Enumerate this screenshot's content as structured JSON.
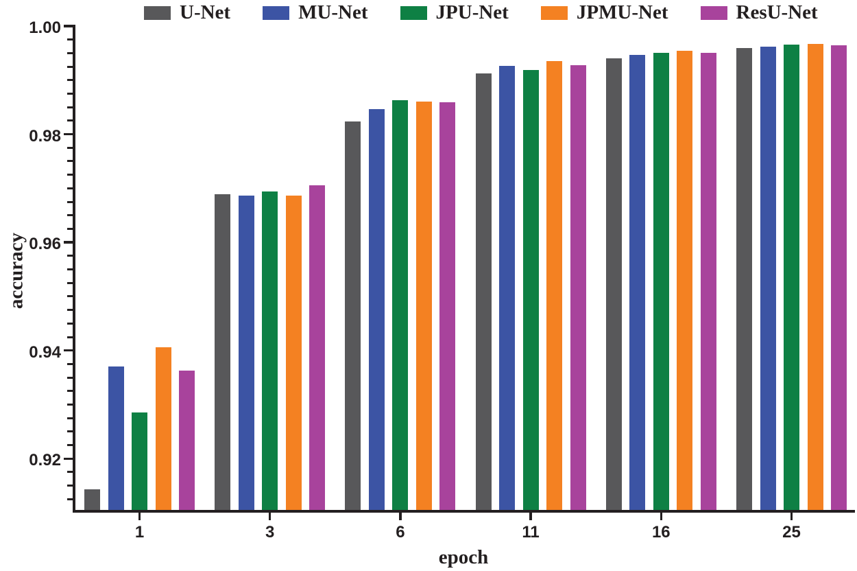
{
  "chart_data": {
    "type": "bar",
    "title": "",
    "xlabel": "epoch",
    "ylabel": "accuracy",
    "categories": [
      "1",
      "3",
      "6",
      "11",
      "16",
      "25"
    ],
    "series": [
      {
        "name": "U-Net",
        "color": "#58585a",
        "values": [
          0.9143,
          0.9689,
          0.9824,
          0.9912,
          0.9941,
          0.9959
        ]
      },
      {
        "name": "MU-Net",
        "color": "#3c54a4",
        "values": [
          0.937,
          0.9686,
          0.9846,
          0.9926,
          0.9947,
          0.9962
        ]
      },
      {
        "name": "JPU-Net",
        "color": "#0e8044",
        "values": [
          0.9286,
          0.9694,
          0.9863,
          0.9919,
          0.9951,
          0.9966
        ]
      },
      {
        "name": "JPMU-Net",
        "color": "#f48122",
        "values": [
          0.9406,
          0.9686,
          0.986,
          0.9935,
          0.9954,
          0.9967
        ]
      },
      {
        "name": "ResU-Net",
        "color": "#a8439c",
        "values": [
          0.9363,
          0.9706,
          0.9859,
          0.9928,
          0.995,
          0.9965
        ]
      }
    ],
    "ylim": [
      0.91,
      1.0
    ],
    "y_major_ticks": [
      1.0,
      0.98,
      0.96,
      0.94,
      0.92
    ],
    "y_tick_labels": [
      "1.00",
      "0.98",
      "0.96",
      "0.94",
      "0.92"
    ],
    "y_minor_step": 0.0025,
    "grid": false,
    "legend_position": "top"
  }
}
